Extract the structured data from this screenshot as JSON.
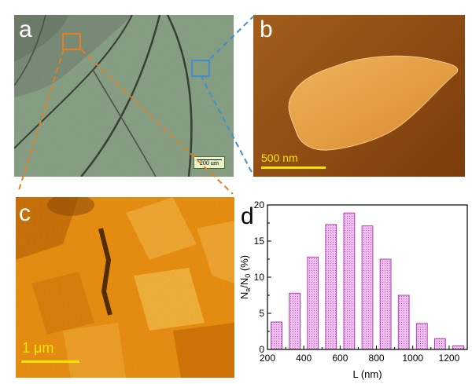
{
  "panels": {
    "a": {
      "label": "a",
      "scale_bar": "200 um"
    },
    "b": {
      "label": "b",
      "scale_bar": "500 nm"
    },
    "c": {
      "label": "c",
      "scale_bar": "1 μm"
    },
    "d": {
      "label": "d"
    }
  },
  "chart_data": {
    "type": "bar",
    "x": [
      250,
      350,
      450,
      550,
      650,
      750,
      850,
      950,
      1050,
      1150,
      1250
    ],
    "values": [
      3.8,
      7.8,
      12.8,
      17.3,
      18.9,
      17.1,
      12.5,
      7.5,
      3.6,
      1.5,
      0.5
    ],
    "xlabel": "L (nm)",
    "ylabel_parts": {
      "n": "N",
      "a": "a",
      "slash": "/N",
      "zero": "0",
      "unit": " (%)"
    },
    "xlim": [
      200,
      1300
    ],
    "ylim": [
      0,
      20
    ],
    "xticks": [
      "200",
      "400",
      "600",
      "800",
      "1000",
      "1200"
    ],
    "yticks": [
      "0",
      "5",
      "10",
      "15",
      "20"
    ],
    "bar_color": "#e7a9e7",
    "edge_color": "#a0209f"
  },
  "colors": {
    "orange_box": "#e67e22",
    "blue_box": "#3f8fd0",
    "scale_yellow": "#f5e600"
  }
}
